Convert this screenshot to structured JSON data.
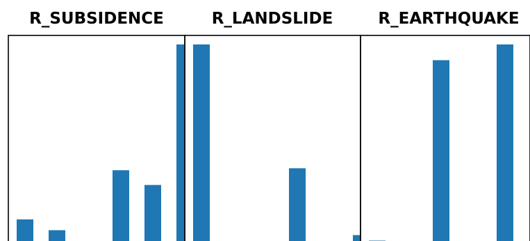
{
  "chart_data": [
    {
      "type": "bar",
      "title": "R_SUBSIDENCE",
      "values": [
        0.11,
        0.055,
        0,
        0.36,
        0.285,
        1.0
      ],
      "ylim": [
        0,
        1
      ],
      "color": "#1f77b4"
    },
    {
      "type": "bar",
      "title": "R_LANDSLIDE",
      "values": [
        1.0,
        0,
        0,
        0.37,
        0,
        0.03
      ],
      "ylim": [
        0,
        1
      ],
      "color": "#1f77b4"
    },
    {
      "type": "bar",
      "title": "R_EARTHQUAKE",
      "values": [
        0.002,
        0,
        0.92,
        0,
        1.0,
        0,
        0.002
      ],
      "ylim": [
        0,
        1
      ],
      "color": "#1f77b4"
    }
  ]
}
